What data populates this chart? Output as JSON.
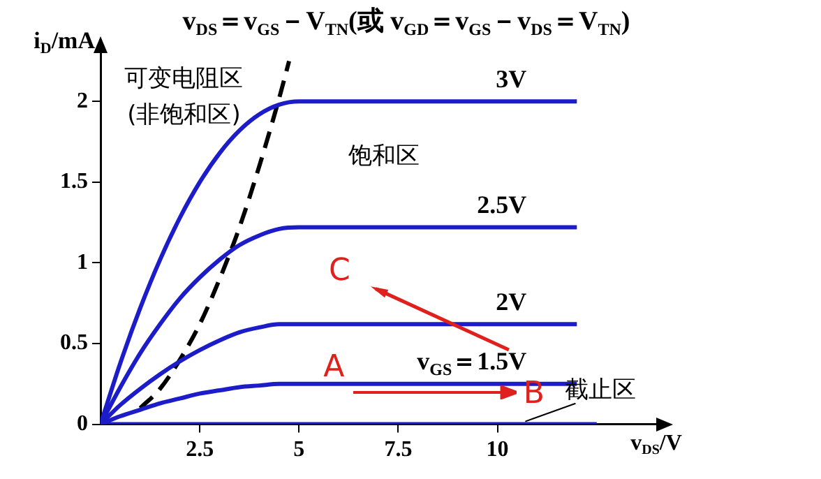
{
  "chart_data": {
    "type": "line",
    "title": "v$_{DS}$＝v$_{GS}$－V$_{TN}$(或 v$_{GD}$＝v$_{GS}$－v$_{DS}$＝V$_{TN}$)",
    "xlabel": "v$_{DS}$/V",
    "ylabel": "i$_{D}$/mA",
    "xlim": [
      0,
      14
    ],
    "ylim": [
      0,
      2.3
    ],
    "xticks": [
      2.5,
      5,
      7.5,
      10
    ],
    "yticks": [
      0,
      0.5,
      1,
      1.5,
      2
    ],
    "grid": false,
    "legend": false,
    "marker": "none",
    "series": [
      {
        "name": "3V",
        "color": "#1c1cc8",
        "x": [
          0,
          0.5,
          1,
          1.5,
          2,
          2.5,
          3,
          3.5,
          4,
          4.5,
          5,
          12
        ],
        "values": [
          0,
          0.38,
          0.72,
          1.02,
          1.28,
          1.5,
          1.68,
          1.82,
          1.92,
          1.98,
          2,
          2
        ]
      },
      {
        "name": "2.5V",
        "color": "#1c1cc8",
        "x": [
          0,
          0.5,
          1,
          1.5,
          2,
          2.5,
          3,
          3.5,
          4,
          4.5,
          5,
          12
        ],
        "values": [
          0,
          0.23,
          0.44,
          0.62,
          0.78,
          0.91,
          1.02,
          1.11,
          1.17,
          1.21,
          1.22,
          1.22
        ]
      },
      {
        "name": "2V",
        "color": "#1c1cc8",
        "x": [
          0,
          0.5,
          1,
          1.5,
          2,
          2.5,
          3,
          3.5,
          4,
          4.5,
          5,
          12
        ],
        "values": [
          0,
          0.12,
          0.22,
          0.31,
          0.39,
          0.46,
          0.52,
          0.57,
          0.6,
          0.62,
          0.62,
          0.62
        ]
      },
      {
        "name": "v$_{GS}$＝1.5V",
        "color": "#1c1cc8",
        "x": [
          0,
          0.5,
          1,
          1.5,
          2,
          2.5,
          3,
          3.5,
          4,
          4.5,
          5,
          12
        ],
        "values": [
          0,
          0.05,
          0.09,
          0.13,
          0.16,
          0.19,
          0.21,
          0.23,
          0.24,
          0.25,
          0.25,
          0.25
        ]
      },
      {
        "color": "#1c1cc8",
        "x": [
          0,
          12.5
        ],
        "values": [
          0,
          0
        ]
      },
      {
        "color": "#000000",
        "line_style": "dashed",
        "x": [
          1,
          1.5,
          2,
          2.5,
          3,
          3.5,
          4,
          4.5,
          4.75
        ],
        "values": [
          0.1,
          0.22,
          0.4,
          0.62,
          0.9,
          1.22,
          1.6,
          2.02,
          2.25
        ]
      }
    ],
    "annotations": [
      "A",
      "B",
      "C",
      "可变电阻区\n(非饱和区)",
      "饱和区",
      {
        "text": "截止区",
        "x": 10.7,
        "y": 0
      }
    ]
  }
}
